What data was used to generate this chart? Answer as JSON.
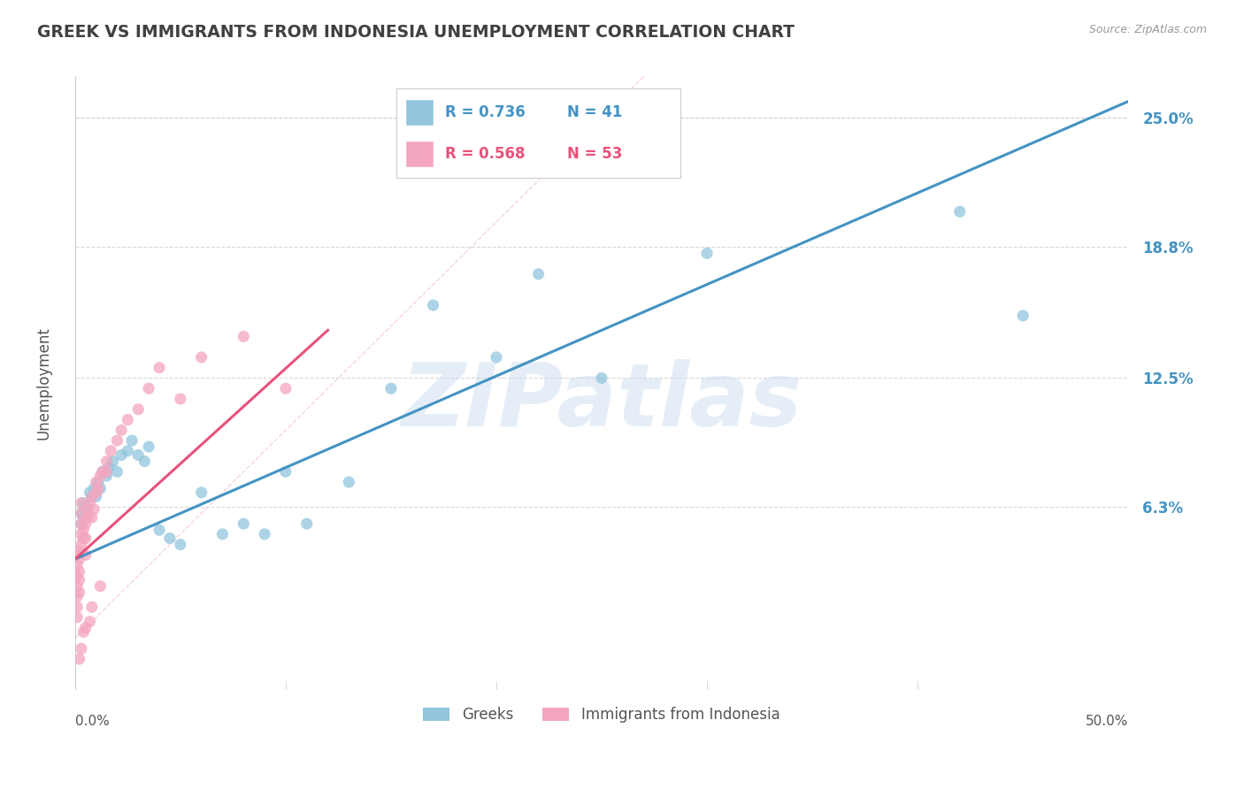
{
  "title": "GREEK VS IMMIGRANTS FROM INDONESIA UNEMPLOYMENT CORRELATION CHART",
  "source": "Source: ZipAtlas.com",
  "ylabel": "Unemployment",
  "ytick_positions": [
    0.063,
    0.125,
    0.188,
    0.25
  ],
  "ytick_labels": [
    "6.3%",
    "12.5%",
    "18.8%",
    "25.0%"
  ],
  "xlim": [
    0.0,
    0.5
  ],
  "ylim": [
    -0.025,
    0.27
  ],
  "blue_color": "#92c5de",
  "pink_color": "#f4a6be",
  "blue_line_color": "#4393c3",
  "pink_line_color": "#e8527a",
  "blue_label": "Greeks",
  "pink_label": "Immigrants from Indonesia",
  "blue_R": "0.736",
  "blue_N": "41",
  "pink_R": "0.568",
  "pink_N": "53",
  "watermark": "ZIPatlas",
  "watermark_color": "#c6dbef",
  "grid_color": "#d0d0d0",
  "title_color": "#404040",
  "right_label_color": "#4393c3",
  "blue_scatter_x": [
    0.003,
    0.003,
    0.004,
    0.004,
    0.005,
    0.006,
    0.007,
    0.008,
    0.009,
    0.01,
    0.011,
    0.012,
    0.013,
    0.015,
    0.016,
    0.018,
    0.02,
    0.022,
    0.025,
    0.027,
    0.03,
    0.033,
    0.035,
    0.04,
    0.045,
    0.05,
    0.06,
    0.07,
    0.08,
    0.09,
    0.1,
    0.11,
    0.13,
    0.15,
    0.17,
    0.2,
    0.22,
    0.25,
    0.3,
    0.42,
    0.45
  ],
  "blue_scatter_y": [
    0.055,
    0.06,
    0.058,
    0.065,
    0.063,
    0.062,
    0.07,
    0.068,
    0.072,
    0.068,
    0.075,
    0.072,
    0.08,
    0.078,
    0.082,
    0.085,
    0.08,
    0.088,
    0.09,
    0.095,
    0.088,
    0.085,
    0.092,
    0.052,
    0.048,
    0.045,
    0.07,
    0.05,
    0.055,
    0.05,
    0.08,
    0.055,
    0.075,
    0.12,
    0.16,
    0.135,
    0.175,
    0.125,
    0.185,
    0.205,
    0.155
  ],
  "pink_scatter_x": [
    0.001,
    0.001,
    0.001,
    0.001,
    0.001,
    0.001,
    0.001,
    0.002,
    0.002,
    0.002,
    0.002,
    0.002,
    0.003,
    0.003,
    0.003,
    0.003,
    0.003,
    0.004,
    0.004,
    0.005,
    0.005,
    0.005,
    0.006,
    0.006,
    0.007,
    0.008,
    0.008,
    0.009,
    0.01,
    0.01,
    0.011,
    0.012,
    0.013,
    0.015,
    0.017,
    0.02,
    0.022,
    0.025,
    0.03,
    0.035,
    0.04,
    0.05,
    0.06,
    0.08,
    0.1,
    0.015,
    0.005,
    0.003,
    0.007,
    0.002,
    0.004,
    0.008,
    0.012
  ],
  "pink_scatter_y": [
    0.04,
    0.035,
    0.03,
    0.025,
    0.02,
    0.015,
    0.01,
    0.042,
    0.038,
    0.032,
    0.028,
    0.022,
    0.045,
    0.05,
    0.055,
    0.06,
    0.065,
    0.048,
    0.052,
    0.04,
    0.048,
    0.055,
    0.058,
    0.062,
    0.065,
    0.058,
    0.068,
    0.062,
    0.07,
    0.075,
    0.072,
    0.078,
    0.08,
    0.085,
    0.09,
    0.095,
    0.1,
    0.105,
    0.11,
    0.12,
    0.13,
    0.115,
    0.135,
    0.145,
    0.12,
    0.08,
    0.005,
    -0.005,
    0.008,
    -0.01,
    0.003,
    0.015,
    0.025
  ],
  "blue_line_x": [
    0.0,
    0.5
  ],
  "blue_line_y": [
    0.038,
    0.258
  ],
  "pink_line_x": [
    0.0,
    0.12
  ],
  "pink_line_y": [
    0.038,
    0.148
  ],
  "diag_line_x": [
    0.0,
    0.27
  ],
  "diag_line_y": [
    0.0,
    0.27
  ]
}
